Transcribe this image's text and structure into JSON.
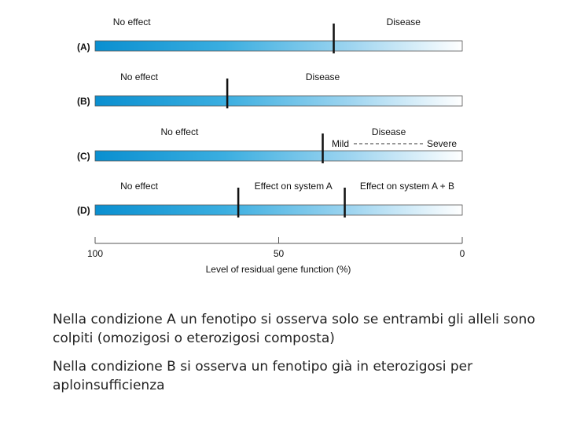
{
  "figure": {
    "rows": [
      {
        "id": "A",
        "label": "(A)",
        "threshold": 35,
        "zones": [
          {
            "text": "No effect",
            "at": 90
          },
          {
            "text": "Disease",
            "at": 16
          }
        ]
      },
      {
        "id": "B",
        "label": "(B)",
        "threshold": 64,
        "zones": [
          {
            "text": "No effect",
            "at": 88
          },
          {
            "text": "Disease",
            "at": 38
          }
        ]
      },
      {
        "id": "C",
        "label": "(C)",
        "threshold": 38,
        "zones": [
          {
            "text": "No effect",
            "at": 77
          },
          {
            "text": "Disease",
            "at": 20
          }
        ],
        "severity": {
          "mild": "Mild",
          "severe": "Severe"
        }
      },
      {
        "id": "D",
        "label": "(D)",
        "threshold_a": 61,
        "threshold_b": 32,
        "zones": [
          {
            "text": "No effect",
            "at": 88
          },
          {
            "text": "Effect on system A",
            "at": 46
          },
          {
            "text": "Effect on system A + B",
            "at": 15
          }
        ]
      }
    ],
    "axis": {
      "ticks": [
        {
          "value": 100,
          "label": "100"
        },
        {
          "value": 50,
          "label": "50"
        },
        {
          "value": 0,
          "label": "0"
        }
      ],
      "title": "Level of residual gene function (%)"
    },
    "colors": {
      "bar_dark": "#0a8fd0",
      "bar_light": "#ffffff",
      "marker": "#111111"
    }
  },
  "captions": [
    "Nella condizione A un fenotipo si osserva solo se entrambi gli alleli sono colpiti (omozigosi o eterozigosi composta)",
    "Nella condizione B si osserva un fenotipo già in eterozigosi per aploinsufficienza"
  ]
}
